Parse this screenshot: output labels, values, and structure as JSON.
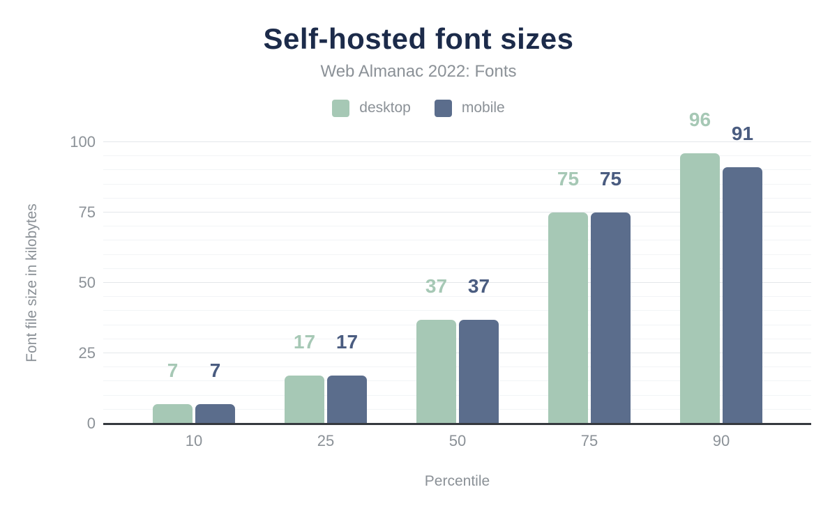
{
  "chart_data": {
    "type": "bar",
    "title": "Self-hosted font sizes",
    "subtitle": "Web Almanac 2022: Fonts",
    "xlabel": "Percentile",
    "ylabel": "Font file size in kilobytes",
    "categories": [
      "10",
      "25",
      "50",
      "75",
      "90"
    ],
    "series": [
      {
        "name": "desktop",
        "color": "#a6c8b5",
        "label_color": "#a6c8b5",
        "values": [
          7,
          17,
          37,
          75,
          96
        ]
      },
      {
        "name": "mobile",
        "color": "#5b6d8c",
        "label_color": "#4a5c80",
        "values": [
          7,
          17,
          37,
          75,
          91
        ]
      }
    ],
    "ylim": [
      0,
      100
    ],
    "yticks": [
      0,
      25,
      50,
      75,
      100
    ],
    "grid": {
      "major_every": 25,
      "minor_every": 5,
      "major_color": "#e4e7ea",
      "minor_color": "#f2f4f6"
    },
    "axis_line_color": "#35393e",
    "text_color": "#8b9197",
    "title_color": "#1c2b4a",
    "legend_position": "top"
  }
}
